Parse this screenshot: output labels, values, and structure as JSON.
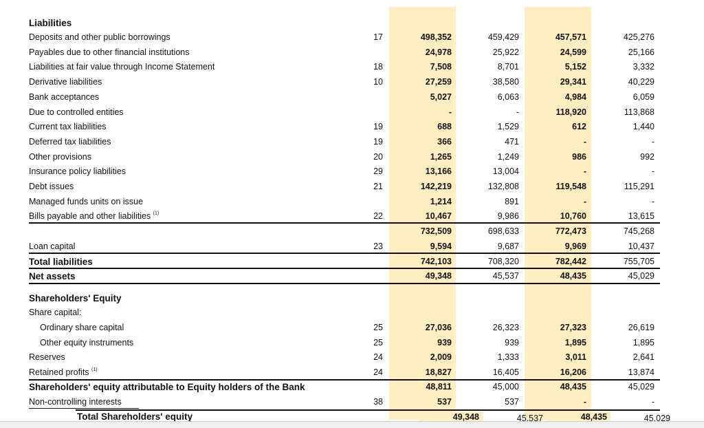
{
  "colors": {
    "highlight": "#ffeec2",
    "text": "#111111"
  },
  "sections": {
    "liabilities_header": "Liabilities",
    "equity_header": "Shareholders' Equity",
    "share_capital_label": "Share capital:"
  },
  "rows": [
    {
      "label": "Deposits and other public borrowings",
      "note": "17",
      "values": [
        "498,352",
        "459,429",
        "457,571",
        "425,276"
      ]
    },
    {
      "label": "Payables due to other financial institutions",
      "note": "",
      "values": [
        "24,978",
        "25,922",
        "24,599",
        "25,166"
      ]
    },
    {
      "label": "Liabilities at fair value through Income Statement",
      "note": "18",
      "values": [
        "7,508",
        "8,701",
        "5,152",
        "3,332"
      ]
    },
    {
      "label": "Derivative liabilities",
      "note": "10",
      "values": [
        "27,259",
        "38,580",
        "29,341",
        "40,229"
      ]
    },
    {
      "label": "Bank acceptances",
      "note": "",
      "values": [
        "5,027",
        "6,063",
        "4,984",
        "6,059"
      ]
    },
    {
      "label": "Due to controlled entities",
      "note": "",
      "values": [
        "-",
        "-",
        "118,920",
        "113,868"
      ]
    },
    {
      "label": "Current tax liabilities",
      "note": "19",
      "values": [
        "688",
        "1,529",
        "612",
        "1,440"
      ]
    },
    {
      "label": "Deferred tax liabilities",
      "note": "19",
      "values": [
        "366",
        "471",
        "-",
        "-"
      ]
    },
    {
      "label": "Other provisions",
      "note": "20",
      "values": [
        "1,265",
        "1,249",
        "986",
        "992"
      ]
    },
    {
      "label": "Insurance policy liabilities",
      "note": "29",
      "values": [
        "13,166",
        "13,004",
        "-",
        "-"
      ]
    },
    {
      "label": "Debt issues",
      "note": "21",
      "values": [
        "142,219",
        "132,808",
        "119,548",
        "115,291"
      ]
    },
    {
      "label": "Managed funds units on issue",
      "note": "",
      "values": [
        "1,214",
        "891",
        "-",
        "-"
      ]
    },
    {
      "label": "Bills payable and other liabilities",
      "footnote": "(1)",
      "note": "22",
      "values": [
        "10,467",
        "9,986",
        "10,760",
        "13,615"
      ]
    },
    {
      "label": "",
      "note": "",
      "values": [
        "732,509",
        "698,633",
        "772,473",
        "745,268"
      ]
    },
    {
      "label": "Loan capital",
      "note": "23",
      "values": [
        "9,594",
        "9,687",
        "9,969",
        "10,437"
      ]
    },
    {
      "label": "Total liabilities",
      "bold": true,
      "note": "",
      "values": [
        "742,103",
        "708,320",
        "782,442",
        "755,705"
      ]
    },
    {
      "label": "Net assets",
      "bold": true,
      "note": "",
      "values": [
        "49,348",
        "45,537",
        "48,435",
        "45,029"
      ]
    }
  ],
  "equity_rows": [
    {
      "label": "Ordinary share capital",
      "indent": true,
      "note": "25",
      "values": [
        "27,036",
        "26,323",
        "27,323",
        "26,619"
      ]
    },
    {
      "label": "Other equity instruments",
      "indent": true,
      "note": "25",
      "values": [
        "939",
        "939",
        "1,895",
        "1,895"
      ]
    },
    {
      "label": "Reserves",
      "note": "24",
      "values": [
        "2,009",
        "1,333",
        "3,011",
        "2,641"
      ]
    },
    {
      "label": "Retained profits",
      "footnote": "(1)",
      "note": "24",
      "values": [
        "18,827",
        "16,405",
        "16,206",
        "13,874"
      ]
    },
    {
      "label": "Shareholders' equity attributable to Equity holders of the Bank",
      "hdr": true,
      "note": "",
      "values": [
        "48,811",
        "45,000",
        "48,435",
        "45,029"
      ]
    },
    {
      "label": "Non-controlling interests",
      "note": "38",
      "values": [
        "537",
        "537",
        "-",
        "-"
      ]
    }
  ],
  "total_equity": {
    "label": "Total Shareholders' equity",
    "values": [
      "49,348",
      "45,537",
      "48,435",
      "45,029"
    ]
  }
}
